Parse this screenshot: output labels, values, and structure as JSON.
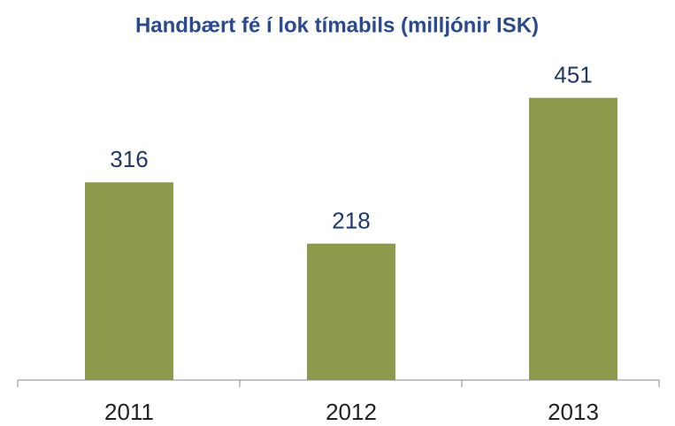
{
  "chart_data": {
    "type": "bar",
    "title": "Handbært fé í lok tímabils (milljónir ISK)",
    "categories": [
      "2011",
      "2012",
      "2013"
    ],
    "values": [
      316,
      218,
      451
    ],
    "color": "#8e9a4b",
    "ylim": [
      0,
      500
    ]
  }
}
